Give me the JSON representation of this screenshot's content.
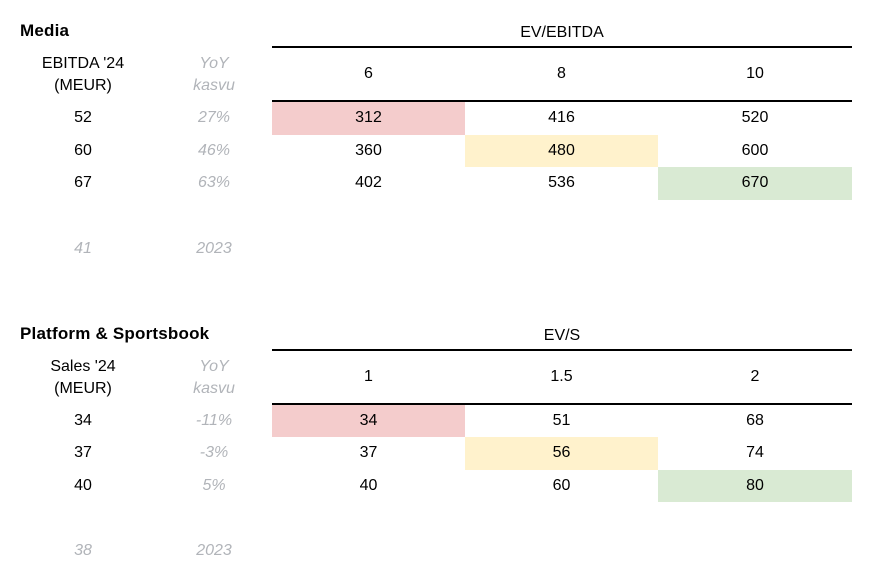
{
  "colors": {
    "highlight_red": "#f4cccc",
    "highlight_yellow": "#fff2cc",
    "highlight_green": "#d9ead3",
    "gray_text": "#b1b4b9",
    "line": "#000000"
  },
  "chart_data": [
    {
      "type": "table",
      "title": "Media",
      "column_group_label": "EV/EBITDA",
      "row_header": [
        "EBITDA '24",
        "(MEUR)"
      ],
      "row_subheader": [
        "YoY",
        "kasvu"
      ],
      "multiples": [
        "6",
        "8",
        "10"
      ],
      "rows": [
        {
          "metric": "52",
          "yoy": "27%",
          "values": [
            "312",
            "416",
            "520"
          ]
        },
        {
          "metric": "60",
          "yoy": "46%",
          "values": [
            "360",
            "480",
            "600"
          ]
        },
        {
          "metric": "67",
          "yoy": "63%",
          "values": [
            "402",
            "536",
            "670"
          ]
        }
      ],
      "highlights": [
        {
          "row": 0,
          "col": 0,
          "color": "#f4cccc"
        },
        {
          "row": 1,
          "col": 1,
          "color": "#fff2cc"
        },
        {
          "row": 2,
          "col": 2,
          "color": "#d9ead3"
        }
      ],
      "prior_year": {
        "value": "41",
        "label": "2023"
      }
    },
    {
      "type": "table",
      "title": "Platform & Sportsbook",
      "column_group_label": "EV/S",
      "row_header": [
        "Sales '24",
        "(MEUR)"
      ],
      "row_subheader": [
        "YoY",
        "kasvu"
      ],
      "multiples": [
        "1",
        "1.5",
        "2"
      ],
      "rows": [
        {
          "metric": "34",
          "yoy": "-11%",
          "values": [
            "34",
            "51",
            "68"
          ]
        },
        {
          "metric": "37",
          "yoy": "-3%",
          "values": [
            "37",
            "56",
            "74"
          ]
        },
        {
          "metric": "40",
          "yoy": "5%",
          "values": [
            "40",
            "60",
            "80"
          ]
        }
      ],
      "highlights": [
        {
          "row": 0,
          "col": 0,
          "color": "#f4cccc"
        },
        {
          "row": 1,
          "col": 1,
          "color": "#fff2cc"
        },
        {
          "row": 2,
          "col": 2,
          "color": "#d9ead3"
        }
      ],
      "prior_year": {
        "value": "38",
        "label": "2023"
      }
    }
  ]
}
